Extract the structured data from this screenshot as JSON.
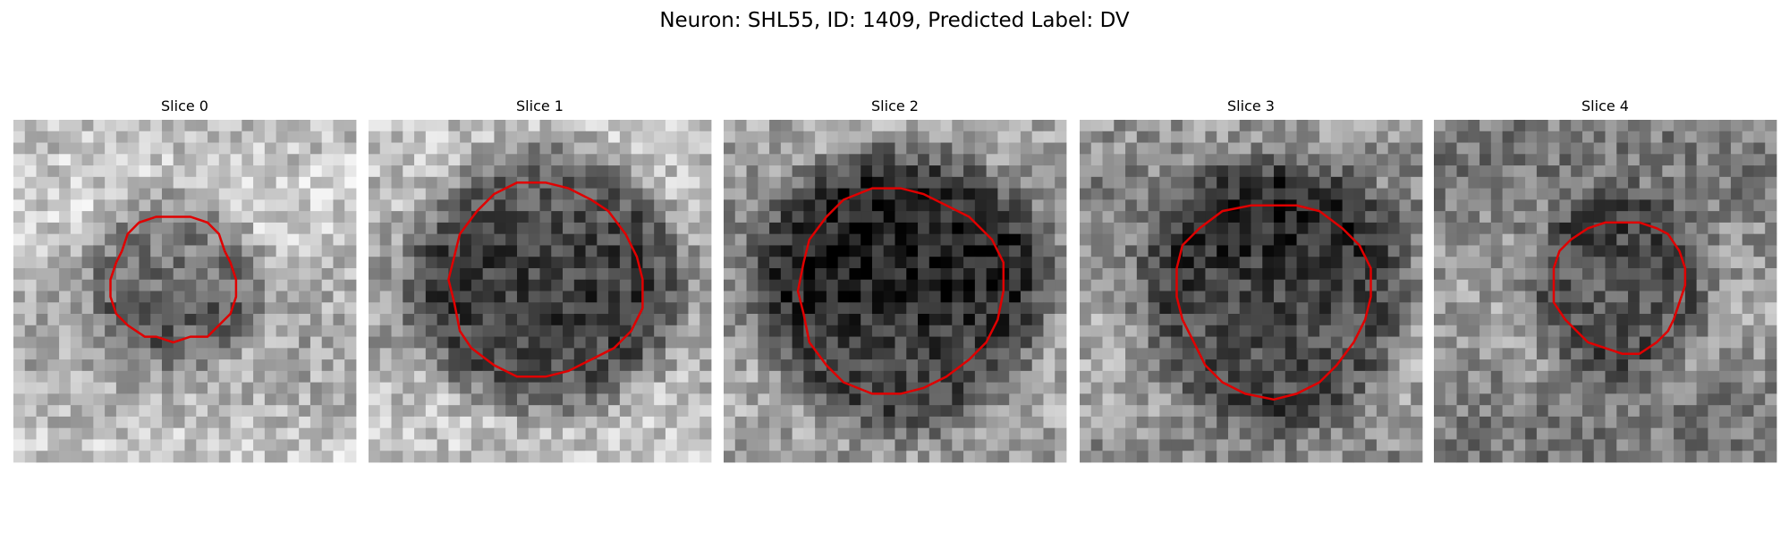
{
  "header": {
    "title": "Neuron: SHL55, ID: 1409, Predicted Label: DV"
  },
  "panels": [
    {
      "title": "Slice 0"
    },
    {
      "title": "Slice 1"
    },
    {
      "title": "Slice 2"
    },
    {
      "title": "Slice 3"
    },
    {
      "title": "Slice 4"
    }
  ]
}
